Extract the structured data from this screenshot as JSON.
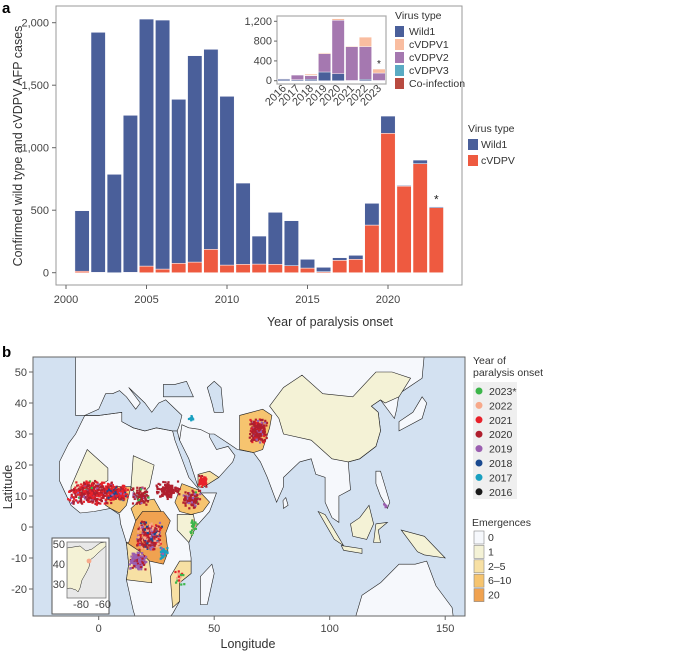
{
  "panels": {
    "a": "a",
    "b": "b"
  },
  "colors": {
    "Wild1": "#4a5f9a",
    "cVDPV": "#ee5a40",
    "cVDPV1": "#f9bda0",
    "cVDPV2": "#a578b0",
    "cVDPV3": "#5aabc3",
    "Co-infection": "#b84a40",
    "ocean": "#d3e1f1",
    "land": "#f6f8fc"
  },
  "chart_data": [
    {
      "type": "bar",
      "stacked": true,
      "xlabel": "Year of paralysis onset",
      "ylabel": "Confirmed wild type and cVDPV AFP cases",
      "xticks": [
        2000,
        2005,
        2010,
        2015,
        2020
      ],
      "yticks": [
        "0",
        "500",
        "1,000",
        "1,500",
        "2,000"
      ],
      "ytick_values": [
        0,
        500,
        1000,
        1500,
        2000
      ],
      "ylim": [
        0,
        2000
      ],
      "xlim": [
        2000,
        2024
      ],
      "categories": [
        2001,
        2002,
        2003,
        2004,
        2005,
        2006,
        2007,
        2008,
        2009,
        2010,
        2011,
        2012,
        2013,
        2014,
        2015,
        2016,
        2017,
        2018,
        2019,
        2020,
        2021,
        2022,
        2023
      ],
      "series": [
        {
          "name": "cVDPV",
          "values": [
            12,
            3,
            0,
            3,
            53,
            29,
            75,
            85,
            187,
            61,
            67,
            69,
            67,
            56,
            37,
            8,
            99,
            107,
            381,
            1115,
            693,
            872,
            520
          ]
        },
        {
          "name": "Wild1",
          "values": [
            484,
            1920,
            787,
            1256,
            1976,
            1992,
            1312,
            1651,
            1600,
            1350,
            650,
            224,
            416,
            360,
            70,
            35,
            21,
            32,
            174,
            138,
            6,
            29,
            8
          ]
        }
      ],
      "annotation": "*",
      "annotation_category": 2023,
      "legend": {
        "title": "Virus type",
        "entries": [
          "Wild1",
          "cVDPV"
        ],
        "placement": "right"
      }
    },
    {
      "type": "bar",
      "stacked": true,
      "inset": true,
      "categories": [
        "2016",
        "2017",
        "2018",
        "2019",
        "2020",
        "2021",
        "2022",
        "2023"
      ],
      "yticks": [
        "0",
        "400",
        "800",
        "1,200"
      ],
      "ytick_values": [
        0,
        400,
        800,
        1200
      ],
      "ylim": [
        0,
        1200
      ],
      "series": [
        {
          "name": "Wild1",
          "values": [
            30,
            20,
            30,
            176,
            140,
            5,
            30,
            5
          ]
        },
        {
          "name": "cVDPV2",
          "values": [
            8,
            95,
            70,
            370,
            1080,
            680,
            660,
            150
          ]
        },
        {
          "name": "cVDPV3",
          "values": [
            0,
            0,
            7,
            0,
            0,
            0,
            0,
            0
          ]
        },
        {
          "name": "cVDPV1",
          "values": [
            0,
            5,
            27,
            16,
            30,
            15,
            190,
            80
          ]
        },
        {
          "name": "Co-infection",
          "values": [
            0,
            0,
            0,
            0,
            0,
            0,
            0,
            0
          ]
        }
      ],
      "annotation": "*",
      "annotation_category": "2023",
      "legend": {
        "title": "Virus type",
        "entries": [
          "Wild1",
          "cVDPV1",
          "cVDPV2",
          "cVDPV3",
          "Co-infection"
        ],
        "placement": "right"
      }
    },
    {
      "type": "map",
      "xlabel": "Longitude",
      "ylabel": "Latitude",
      "xticks": [
        "0",
        "50",
        "100",
        "150"
      ],
      "xtick_values": [
        0,
        50,
        100,
        150
      ],
      "yticks": [
        "50",
        "40",
        "30",
        "20",
        "10",
        "0",
        "-10",
        "-20"
      ],
      "ytick_values": [
        50,
        40,
        30,
        20,
        10,
        0,
        -10,
        -20
      ],
      "xlim": [
        -28,
        158
      ],
      "ylim": [
        -29,
        55
      ],
      "point_legend": {
        "title_line1": "Year of",
        "title_line2": "paralysis onset",
        "entries": [
          {
            "label": "2023*",
            "color": "#3cb54a"
          },
          {
            "label": "2022",
            "color": "#f7a98a"
          },
          {
            "label": "2021",
            "color": "#e8212a"
          },
          {
            "label": "2020",
            "color": "#b01f2e"
          },
          {
            "label": "2019",
            "color": "#9b5fb0"
          },
          {
            "label": "2018",
            "color": "#1a4a90"
          },
          {
            "label": "2017",
            "color": "#1aa0c0"
          },
          {
            "label": "2016",
            "color": "#1a1a1a"
          }
        ]
      },
      "fill_legend": {
        "title": "Emergences",
        "entries": [
          {
            "label": "0",
            "color": "#f6f8fc"
          },
          {
            "label": "1",
            "color": "#f4f2d6"
          },
          {
            "label": "2–5",
            "color": "#f7e0a4"
          },
          {
            "label": "6–10",
            "color": "#f6c46f"
          },
          {
            "label": "20",
            "color": "#f0a250"
          }
        ]
      },
      "inset": {
        "xticks": [
          "-80",
          "-60"
        ],
        "xtick_values": [
          -80,
          -60
        ],
        "yticks": [
          "50",
          "40",
          "30"
        ],
        "ytick_values": [
          50,
          40,
          30
        ]
      }
    }
  ]
}
